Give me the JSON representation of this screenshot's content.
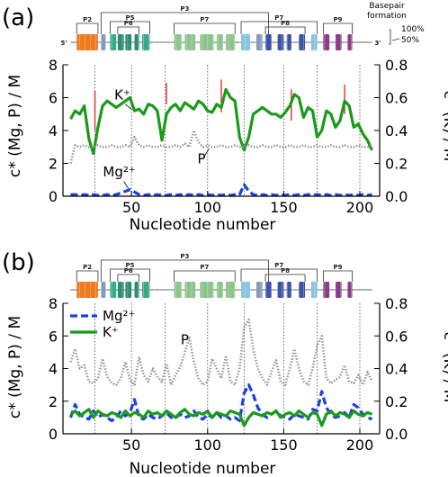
{
  "chart_data": [
    {
      "type": "line",
      "panel_label": "(a)",
      "xlabel": "Nucleotide number",
      "ylabel_left": "c* (Mg, P) / M",
      "ylabel_right": "c* (K) / M",
      "xlim": [
        5,
        213
      ],
      "ylim_left": [
        0,
        8
      ],
      "ylim_right": [
        0,
        0.8
      ],
      "xticks": [
        50,
        100,
        150,
        200
      ],
      "yticks_left": [
        0,
        2,
        4,
        6,
        8
      ],
      "yticks_right": [
        0.0,
        0.2,
        0.4,
        0.6,
        0.8
      ],
      "vlines": [
        26,
        50,
        72,
        100,
        124,
        150,
        172,
        200
      ],
      "red_markers": [
        {
          "x": 26,
          "y_top": 6.4,
          "y_bottom": 4.0
        },
        {
          "x": 73,
          "y_top": 6.9,
          "y_bottom": 5.6
        },
        {
          "x": 109,
          "y_top": 7.1,
          "y_bottom": 5.1
        },
        {
          "x": 155,
          "y_top": 6.5,
          "y_bottom": 4.6
        },
        {
          "x": 190,
          "y_top": 6.8,
          "y_bottom": 5.0
        }
      ],
      "annotations": [
        {
          "text": "K⁺",
          "x": 44,
          "y": 5.9
        },
        {
          "text": "P",
          "x": 96,
          "y": 2.0
        },
        {
          "text": "Mg²⁺",
          "x": 42,
          "y": 1.2
        }
      ],
      "series": [
        {
          "name": "K⁺",
          "axis": "right",
          "color": "#1a9a1a",
          "style": "solid",
          "x": [
            10,
            13,
            16,
            19,
            22,
            25,
            28,
            31,
            34,
            37,
            40,
            43,
            46,
            49,
            52,
            55,
            58,
            61,
            64,
            67,
            70,
            73,
            76,
            79,
            82,
            85,
            88,
            91,
            94,
            97,
            100,
            103,
            106,
            109,
            112,
            115,
            118,
            121,
            124,
            127,
            130,
            133,
            136,
            139,
            142,
            145,
            148,
            151,
            154,
            157,
            160,
            163,
            166,
            169,
            172,
            175,
            178,
            181,
            184,
            187,
            190,
            193,
            196,
            199,
            202,
            205,
            208
          ],
          "y": [
            0.47,
            0.52,
            0.5,
            0.55,
            0.35,
            0.26,
            0.42,
            0.55,
            0.58,
            0.56,
            0.54,
            0.56,
            0.58,
            0.6,
            0.52,
            0.53,
            0.5,
            0.56,
            0.55,
            0.52,
            0.34,
            0.5,
            0.54,
            0.56,
            0.52,
            0.57,
            0.55,
            0.53,
            0.58,
            0.56,
            0.52,
            0.51,
            0.56,
            0.54,
            0.65,
            0.6,
            0.58,
            0.36,
            0.28,
            0.36,
            0.5,
            0.52,
            0.54,
            0.52,
            0.5,
            0.5,
            0.48,
            0.51,
            0.55,
            0.62,
            0.6,
            0.48,
            0.54,
            0.52,
            0.36,
            0.4,
            0.52,
            0.5,
            0.42,
            0.46,
            0.58,
            0.55,
            0.42,
            0.44,
            0.38,
            0.34,
            0.28
          ]
        },
        {
          "name": "P",
          "axis": "left",
          "color": "#9a9a9a",
          "style": "dotted",
          "x": [
            10,
            13,
            16,
            19,
            22,
            25,
            28,
            31,
            34,
            37,
            40,
            43,
            46,
            49,
            52,
            55,
            58,
            61,
            64,
            67,
            70,
            73,
            76,
            79,
            82,
            85,
            88,
            91,
            94,
            97,
            100,
            103,
            106,
            109,
            112,
            115,
            118,
            121,
            124,
            127,
            130,
            133,
            136,
            139,
            142,
            145,
            148,
            151,
            154,
            157,
            160,
            163,
            166,
            169,
            172,
            175,
            178,
            181,
            184,
            187,
            190,
            193,
            196,
            199,
            202,
            205,
            208
          ],
          "y": [
            2.0,
            3.1,
            3.0,
            3.1,
            3.0,
            3.0,
            3.1,
            3.0,
            3.0,
            3.1,
            3.0,
            3.0,
            3.1,
            3.0,
            3.6,
            3.1,
            3.0,
            3.1,
            3.0,
            3.0,
            3.1,
            3.0,
            3.0,
            3.1,
            3.0,
            3.2,
            3.0,
            4.0,
            3.3,
            3.0,
            3.1,
            3.0,
            3.0,
            3.1,
            3.0,
            3.0,
            3.1,
            3.0,
            3.0,
            3.1,
            3.0,
            3.0,
            3.1,
            3.0,
            3.0,
            3.1,
            3.0,
            3.0,
            3.1,
            3.0,
            3.0,
            3.1,
            3.0,
            3.0,
            3.1,
            3.0,
            3.0,
            3.1,
            3.0,
            3.0,
            3.1,
            3.0,
            3.0,
            3.1,
            3.0,
            3.0,
            3.1
          ]
        },
        {
          "name": "Mg²⁺",
          "axis": "left",
          "color": "#1c3fe0",
          "style": "dashed",
          "x": [
            10,
            13,
            16,
            19,
            22,
            25,
            28,
            31,
            34,
            37,
            40,
            43,
            46,
            49,
            52,
            55,
            58,
            61,
            64,
            67,
            70,
            73,
            76,
            79,
            82,
            85,
            88,
            91,
            94,
            97,
            100,
            103,
            106,
            109,
            112,
            115,
            118,
            121,
            124,
            127,
            130,
            133,
            136,
            139,
            142,
            145,
            148,
            151,
            154,
            157,
            160,
            163,
            166,
            169,
            172,
            175,
            178,
            181,
            184,
            187,
            190,
            193,
            196,
            199,
            202,
            205,
            208
          ],
          "y": [
            0.1,
            0.1,
            0.05,
            0.1,
            0.05,
            0.1,
            0.05,
            0.05,
            0.1,
            0.05,
            0.1,
            0.2,
            0.3,
            0.4,
            0.25,
            0.1,
            0.05,
            0.1,
            0.05,
            0.1,
            0.05,
            0.05,
            0.1,
            0.05,
            0.1,
            0.05,
            0.1,
            0.05,
            0.1,
            0.05,
            0.1,
            0.05,
            0.1,
            0.05,
            0.1,
            0.05,
            0.1,
            0.1,
            0.7,
            0.3,
            0.1,
            0.05,
            0.1,
            0.05,
            0.1,
            0.05,
            0.1,
            0.05,
            0.1,
            0.05,
            0.1,
            0.05,
            0.1,
            0.05,
            0.1,
            0.05,
            0.1,
            0.05,
            0.1,
            0.05,
            0.1,
            0.05,
            0.1,
            0.05,
            0.1,
            0.05,
            0.1
          ]
        }
      ]
    },
    {
      "type": "line",
      "panel_label": "(b)",
      "xlabel": "Nucleotide number",
      "ylabel_left": "c* (Mg, P) / M",
      "ylabel_right": "c* (K) / M",
      "xlim": [
        5,
        213
      ],
      "ylim_left": [
        0,
        8
      ],
      "ylim_right": [
        0,
        0.8
      ],
      "xticks": [
        50,
        100,
        150,
        200
      ],
      "yticks_left": [
        0,
        2,
        4,
        6,
        8
      ],
      "yticks_right": [
        0.0,
        0.2,
        0.4,
        0.6,
        0.8
      ],
      "vlines": [
        26,
        50,
        72,
        100,
        124,
        150,
        172,
        200
      ],
      "legend": [
        "Mg²⁺",
        "K⁺"
      ],
      "annotations": [
        {
          "text": "P",
          "x": 85,
          "y": 5.5
        }
      ],
      "series": [
        {
          "name": "P",
          "axis": "left",
          "color": "#9a9a9a",
          "style": "dotted",
          "x": [
            10,
            13,
            16,
            19,
            22,
            25,
            28,
            31,
            34,
            37,
            40,
            43,
            46,
            49,
            52,
            55,
            58,
            61,
            64,
            67,
            70,
            73,
            76,
            79,
            82,
            85,
            88,
            91,
            94,
            97,
            100,
            103,
            106,
            109,
            112,
            115,
            118,
            121,
            124,
            127,
            130,
            133,
            136,
            139,
            142,
            145,
            148,
            151,
            154,
            157,
            160,
            163,
            166,
            169,
            172,
            175,
            178,
            181,
            184,
            187,
            190,
            193,
            196,
            199,
            202,
            205,
            208
          ],
          "y": [
            4.4,
            5.2,
            4.0,
            4.2,
            3.2,
            3.1,
            3.4,
            4.6,
            3.5,
            3.1,
            3.0,
            3.4,
            4.4,
            3.3,
            3.0,
            4.7,
            3.6,
            3.2,
            4.0,
            3.5,
            3.2,
            4.3,
            3.0,
            3.6,
            4.1,
            5.0,
            5.9,
            4.4,
            3.4,
            3.0,
            3.2,
            4.6,
            4.0,
            3.4,
            4.8,
            3.2,
            3.0,
            4.0,
            6.5,
            7.0,
            5.2,
            4.0,
            3.4,
            3.0,
            3.8,
            4.5,
            3.2,
            3.0,
            4.0,
            5.2,
            4.0,
            3.2,
            3.0,
            4.0,
            5.4,
            6.0,
            3.4,
            3.1,
            3.3,
            3.5,
            4.2,
            3.2,
            3.1,
            3.6,
            3.0,
            3.8,
            3.2
          ]
        },
        {
          "name": "Mg²⁺",
          "axis": "left",
          "color": "#1c3fe0",
          "style": "dashed",
          "x": [
            10,
            13,
            16,
            19,
            22,
            25,
            28,
            31,
            34,
            37,
            40,
            43,
            46,
            49,
            52,
            55,
            58,
            61,
            64,
            67,
            70,
            73,
            76,
            79,
            82,
            85,
            88,
            91,
            94,
            97,
            100,
            103,
            106,
            109,
            112,
            115,
            118,
            121,
            124,
            127,
            130,
            133,
            136,
            139,
            142,
            145,
            148,
            151,
            154,
            157,
            160,
            163,
            166,
            169,
            172,
            175,
            178,
            181,
            184,
            187,
            190,
            193,
            196,
            199,
            202,
            205,
            208
          ],
          "y": [
            1.0,
            1.8,
            1.2,
            1.0,
            0.9,
            1.4,
            1.0,
            1.2,
            1.0,
            0.8,
            1.0,
            1.4,
            1.1,
            1.3,
            2.1,
            1.0,
            0.9,
            1.2,
            1.0,
            0.9,
            1.1,
            1.3,
            1.0,
            1.0,
            1.2,
            1.0,
            1.1,
            1.4,
            1.0,
            0.9,
            1.2,
            1.0,
            1.3,
            1.0,
            1.1,
            0.9,
            1.0,
            0.8,
            2.5,
            3.0,
            2.4,
            1.6,
            1.2,
            1.0,
            1.2,
            1.4,
            1.1,
            1.0,
            0.9,
            1.2,
            1.1,
            1.0,
            0.9,
            1.5,
            1.4,
            2.6,
            1.6,
            1.2,
            1.0,
            1.1,
            1.3,
            1.0,
            1.8,
            1.6,
            1.2,
            1.0,
            0.9
          ]
        },
        {
          "name": "K⁺",
          "axis": "right",
          "color": "#1a9a1a",
          "style": "solid",
          "x": [
            10,
            13,
            16,
            19,
            22,
            25,
            28,
            31,
            34,
            37,
            40,
            43,
            46,
            49,
            52,
            55,
            58,
            61,
            64,
            67,
            70,
            73,
            76,
            79,
            82,
            85,
            88,
            91,
            94,
            97,
            100,
            103,
            106,
            109,
            112,
            115,
            118,
            121,
            124,
            127,
            130,
            133,
            136,
            139,
            142,
            145,
            148,
            151,
            154,
            157,
            160,
            163,
            166,
            169,
            172,
            175,
            178,
            181,
            184,
            187,
            190,
            193,
            196,
            199,
            202,
            205,
            208
          ],
          "y": [
            0.12,
            0.14,
            0.11,
            0.13,
            0.15,
            0.1,
            0.14,
            0.12,
            0.11,
            0.13,
            0.12,
            0.1,
            0.14,
            0.11,
            0.13,
            0.12,
            0.1,
            0.14,
            0.12,
            0.13,
            0.11,
            0.14,
            0.12,
            0.1,
            0.13,
            0.15,
            0.12,
            0.11,
            0.13,
            0.12,
            0.14,
            0.1,
            0.13,
            0.12,
            0.11,
            0.14,
            0.13,
            0.12,
            0.05,
            0.1,
            0.13,
            0.12,
            0.11,
            0.13,
            0.12,
            0.14,
            0.1,
            0.12,
            0.13,
            0.11,
            0.14,
            0.12,
            0.1,
            0.13,
            0.12,
            0.05,
            0.12,
            0.14,
            0.11,
            0.13,
            0.12,
            0.1,
            0.14,
            0.12,
            0.11,
            0.13,
            0.12
          ]
        }
      ]
    }
  ],
  "structure_map": {
    "labels": [
      "P2",
      "P3",
      "P4",
      "P5",
      "P6",
      "P7",
      "P8",
      "P9"
    ],
    "end5": "5'",
    "end3": "3'",
    "colors": {
      "P2": "#f07a20",
      "P4": "#3aa88a",
      "P5": "#2e8c6e",
      "P6": "#8cc48c",
      "P7": "#87c4e0",
      "P8": "#3c55a8",
      "P9": "#8a3c8c",
      "link": "#8899bb"
    }
  },
  "basepair_legend": {
    "title": "Basepair formation",
    "levels": [
      "100%",
      "50%"
    ]
  }
}
